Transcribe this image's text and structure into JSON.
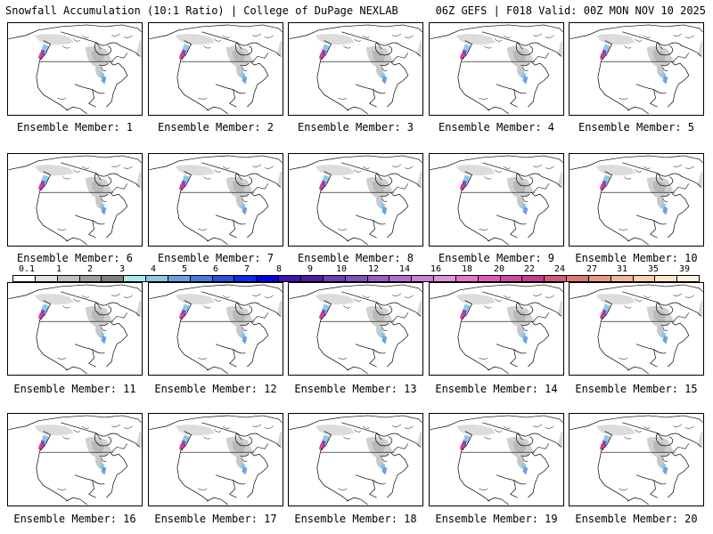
{
  "header": {
    "left_title": "Snowfall Accumulation (10:1 Ratio) | College of DuPage NEXLAB",
    "right_title": "06Z GEFS | F018 Valid: 00Z MON NOV 10 2025"
  },
  "members": [
    {
      "label": "Ensemble Member: 1"
    },
    {
      "label": "Ensemble Member: 2"
    },
    {
      "label": "Ensemble Member: 3"
    },
    {
      "label": "Ensemble Member: 4"
    },
    {
      "label": "Ensemble Member: 5"
    },
    {
      "label": "Ensemble Member: 6"
    },
    {
      "label": "Ensemble Member: 7"
    },
    {
      "label": "Ensemble Member: 8"
    },
    {
      "label": "Ensemble Member: 9"
    },
    {
      "label": "Ensemble Member: 10"
    },
    {
      "label": "Ensemble Member: 11"
    },
    {
      "label": "Ensemble Member: 12"
    },
    {
      "label": "Ensemble Member: 13"
    },
    {
      "label": "Ensemble Member: 14"
    },
    {
      "label": "Ensemble Member: 15"
    },
    {
      "label": "Ensemble Member: 16"
    },
    {
      "label": "Ensemble Member: 17"
    },
    {
      "label": "Ensemble Member: 18"
    },
    {
      "label": "Ensemble Member: 19"
    },
    {
      "label": "Ensemble Member: 20",
      "selected": true
    }
  ],
  "legend": {
    "labels": [
      "0.1",
      "1",
      "2",
      "3",
      "4",
      "5",
      "6",
      "7",
      "8",
      "9",
      "10",
      "12",
      "14",
      "16",
      "18",
      "20",
      "22",
      "24",
      "27",
      "31",
      "35",
      "39"
    ],
    "colors": [
      "#ffffff",
      "#e0e0e0",
      "#c0c0c0",
      "#a0a0a0",
      "#808080",
      "#a8e8e8",
      "#8cc8e8",
      "#6ca0e0",
      "#4a7ad8",
      "#2a50e0",
      "#1428e8",
      "#0000e0",
      "#3c14b4",
      "#501e9c",
      "#6e3cb4",
      "#8250c0",
      "#9a5cc4",
      "#b46ed2",
      "#c882d8",
      "#dc96dc",
      "#e678c8",
      "#e05cb4",
      "#d24aa0",
      "#c83c8c",
      "#d25a7a",
      "#dc7878",
      "#e6968c",
      "#f0b4a0",
      "#f8cdb4",
      "#fde6cc",
      "#fff4dc"
    ],
    "colors_note": ""
  },
  "colors": {
    "snow_light": "#d8d8d8",
    "snow_mid": "#b0b0b0",
    "snow_blue": "#6ca0e0",
    "snow_purple": "#8a40c0",
    "snow_magenta": "#d0409a"
  }
}
